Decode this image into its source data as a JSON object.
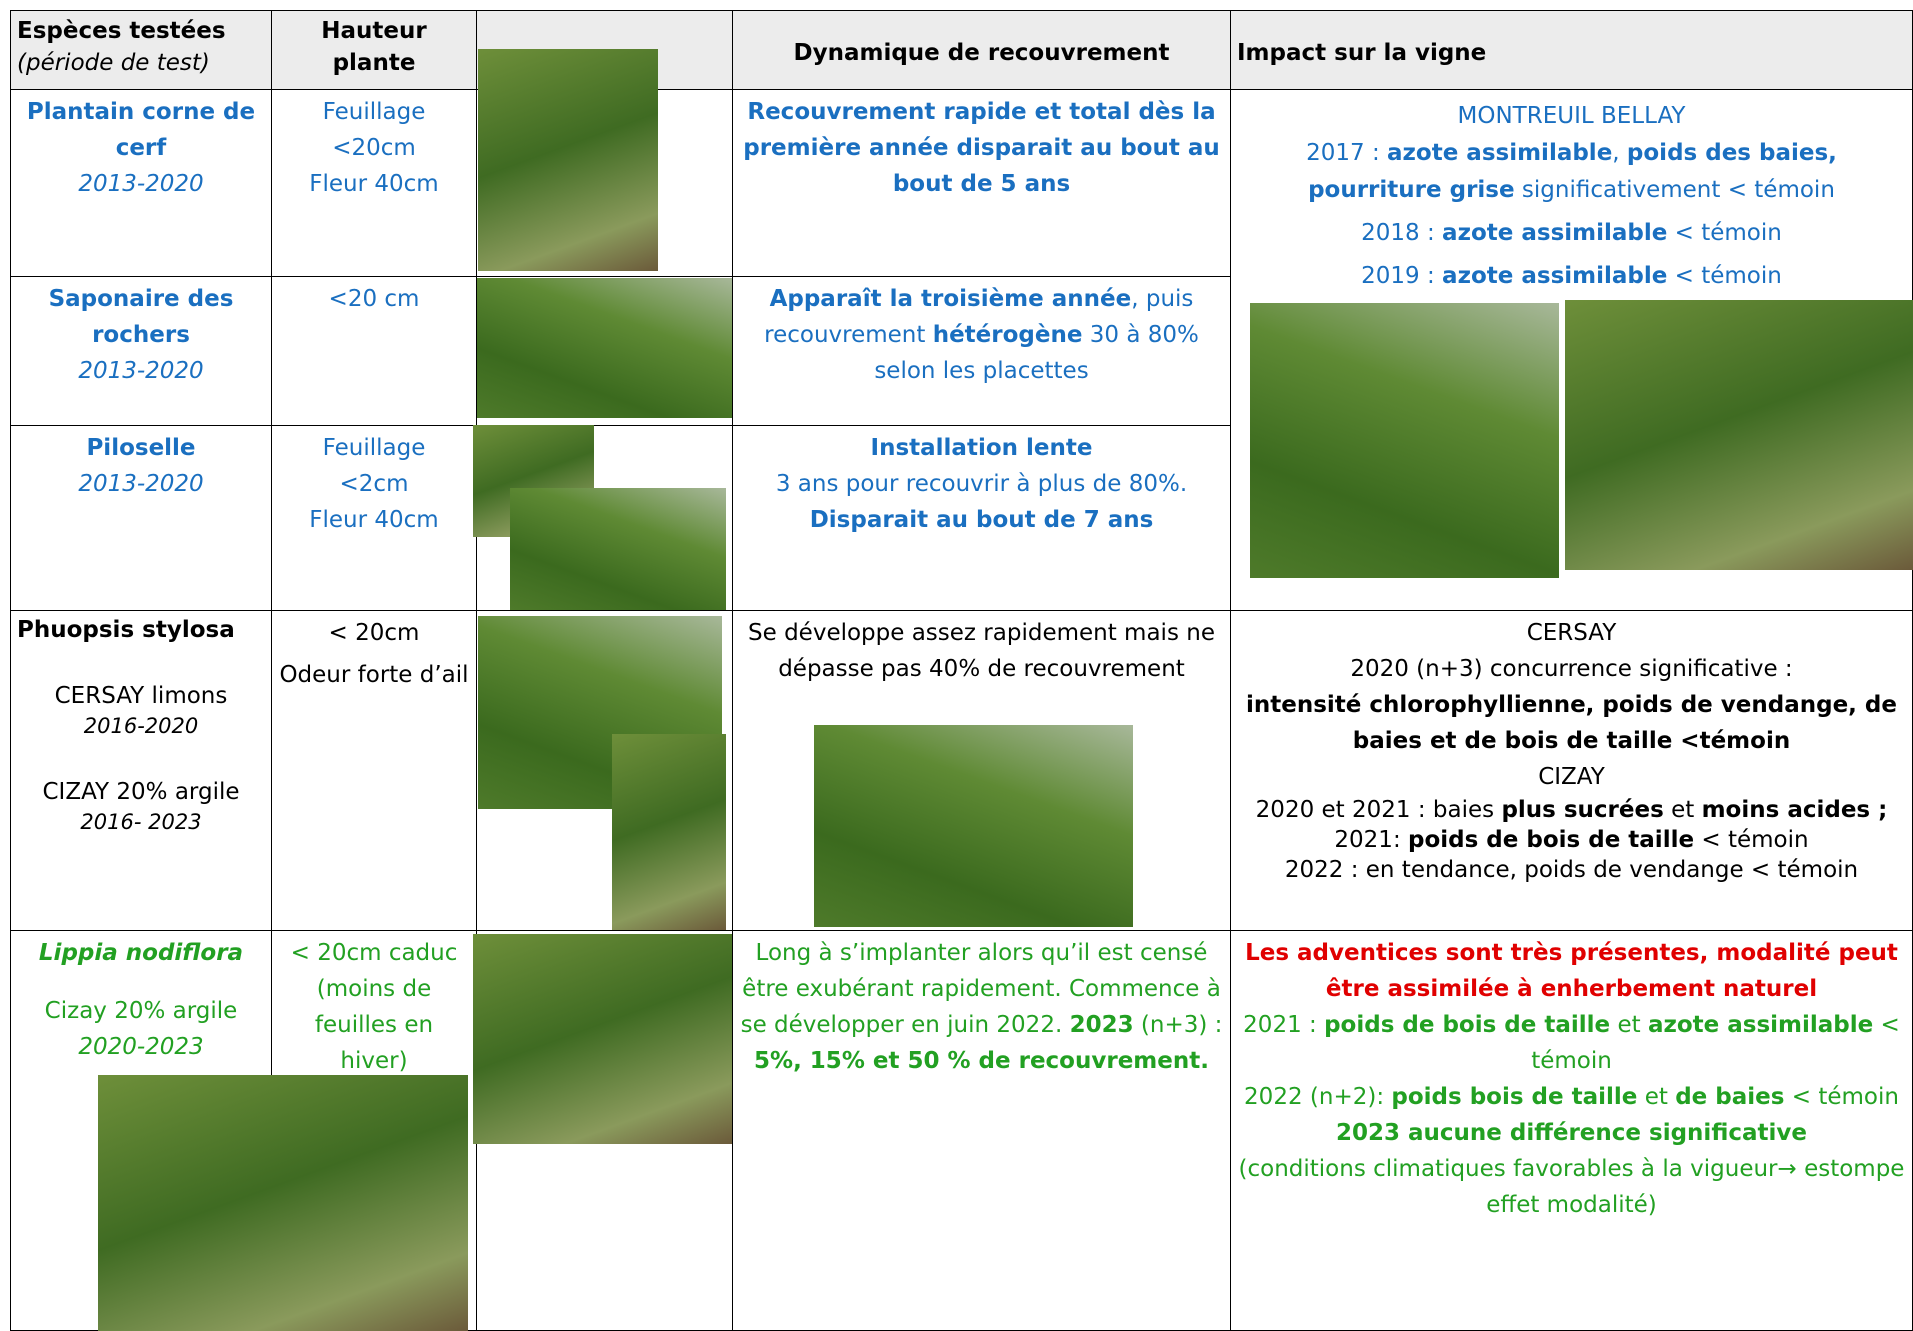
{
  "header": {
    "species": "Espèces testées",
    "period": "(période de test)",
    "height": "Hauteur plante",
    "dynamics": "Dynamique de recouvrement",
    "impact": "Impact sur la vigne"
  },
  "rows": [
    {
      "species": [
        "Plantain corne de cerf",
        "2013-2020"
      ],
      "height": [
        "Feuillage",
        "<20cm",
        "Fleur 40cm"
      ],
      "dynamics": [
        "Recouvrement rapide et total dès la première année disparait au bout au bout de 5 ans"
      ]
    },
    {
      "species": [
        "Saponaire des rochers",
        "2013-2020"
      ],
      "height": [
        "<20 cm"
      ],
      "dynamics": [
        "Apparaît la troisième année",
        ", puis recouvrement ",
        "hétérogène",
        " 30 à 80% selon les placettes"
      ]
    },
    {
      "species": [
        "Piloselle",
        "2013-2020"
      ],
      "height": [
        "Feuillage",
        "<2cm",
        "Fleur 40cm"
      ],
      "dynamics": [
        "Installation lente",
        "3 ans pour recouvrir à plus de 80%. ",
        "Disparait au bout de 7 ans"
      ]
    },
    {
      "species": [
        "Phuopsis stylosa",
        "CERSAY limons",
        "2016-2020",
        "CIZAY 20% argile",
        "2016- 2023"
      ],
      "height": [
        "< 20cm",
        "Odeur forte d’ail"
      ],
      "dynamics": [
        "Se développe assez rapidement mais ne dépasse pas 40% de recouvrement"
      ]
    },
    {
      "species": [
        "Lippia nodiflora",
        "Cizay 20% argile",
        "2020-2023"
      ],
      "height": [
        "< 20cm caduc (moins de feuilles en hiver)"
      ],
      "dynamics": [
        "Long à s’implanter alors qu’il est censé être exubérant rapidement. Commence à se développer en juin 2022. ",
        "2023",
        " (n+3) : ",
        "5%, 15% et 50 % de recouvrement."
      ]
    }
  ],
  "impacts": [
    [
      [
        "MONTREUIL BELLAY"
      ],
      [
        "2017 : ",
        "azote assimilable",
        ", ",
        "poids des baies, pourriture grise",
        " significativement < témoin"
      ],
      [
        "2018 : ",
        "azote assimilable",
        " < témoin"
      ],
      [
        "2019 : ",
        "azote assimilable",
        " < témoin"
      ]
    ],
    [
      [
        "CERSAY"
      ],
      [
        "2020 (n+3) concurrence significative :"
      ],
      [
        "intensité chlorophyllienne, poids de vendange, de baies et de bois de taille <témoin"
      ],
      [
        "CIZAY"
      ],
      [
        "2020 et 2021 : baies ",
        "plus sucrées",
        " et ",
        "moins acides ;",
        " 2021: ",
        "poids de bois de taille",
        " < témoin"
      ],
      [
        "2022 : en tendance, poids de vendange < témoin"
      ]
    ],
    [
      [
        "Les adventices sont très présentes, modalité peut être assimilée à enherbement naturel"
      ],
      [
        "2021 : ",
        "poids de bois de taille",
        " et ",
        "azote assimilable",
        " < témoin"
      ],
      [
        "2022 (n+2): ",
        "poids bois de taille",
        " et ",
        "de baies",
        " < témoin"
      ],
      [
        "2023 aucune différence significative"
      ],
      [
        "(conditions climatiques favorables à la vigueur→ estompe effet modalité)"
      ]
    ]
  ]
}
